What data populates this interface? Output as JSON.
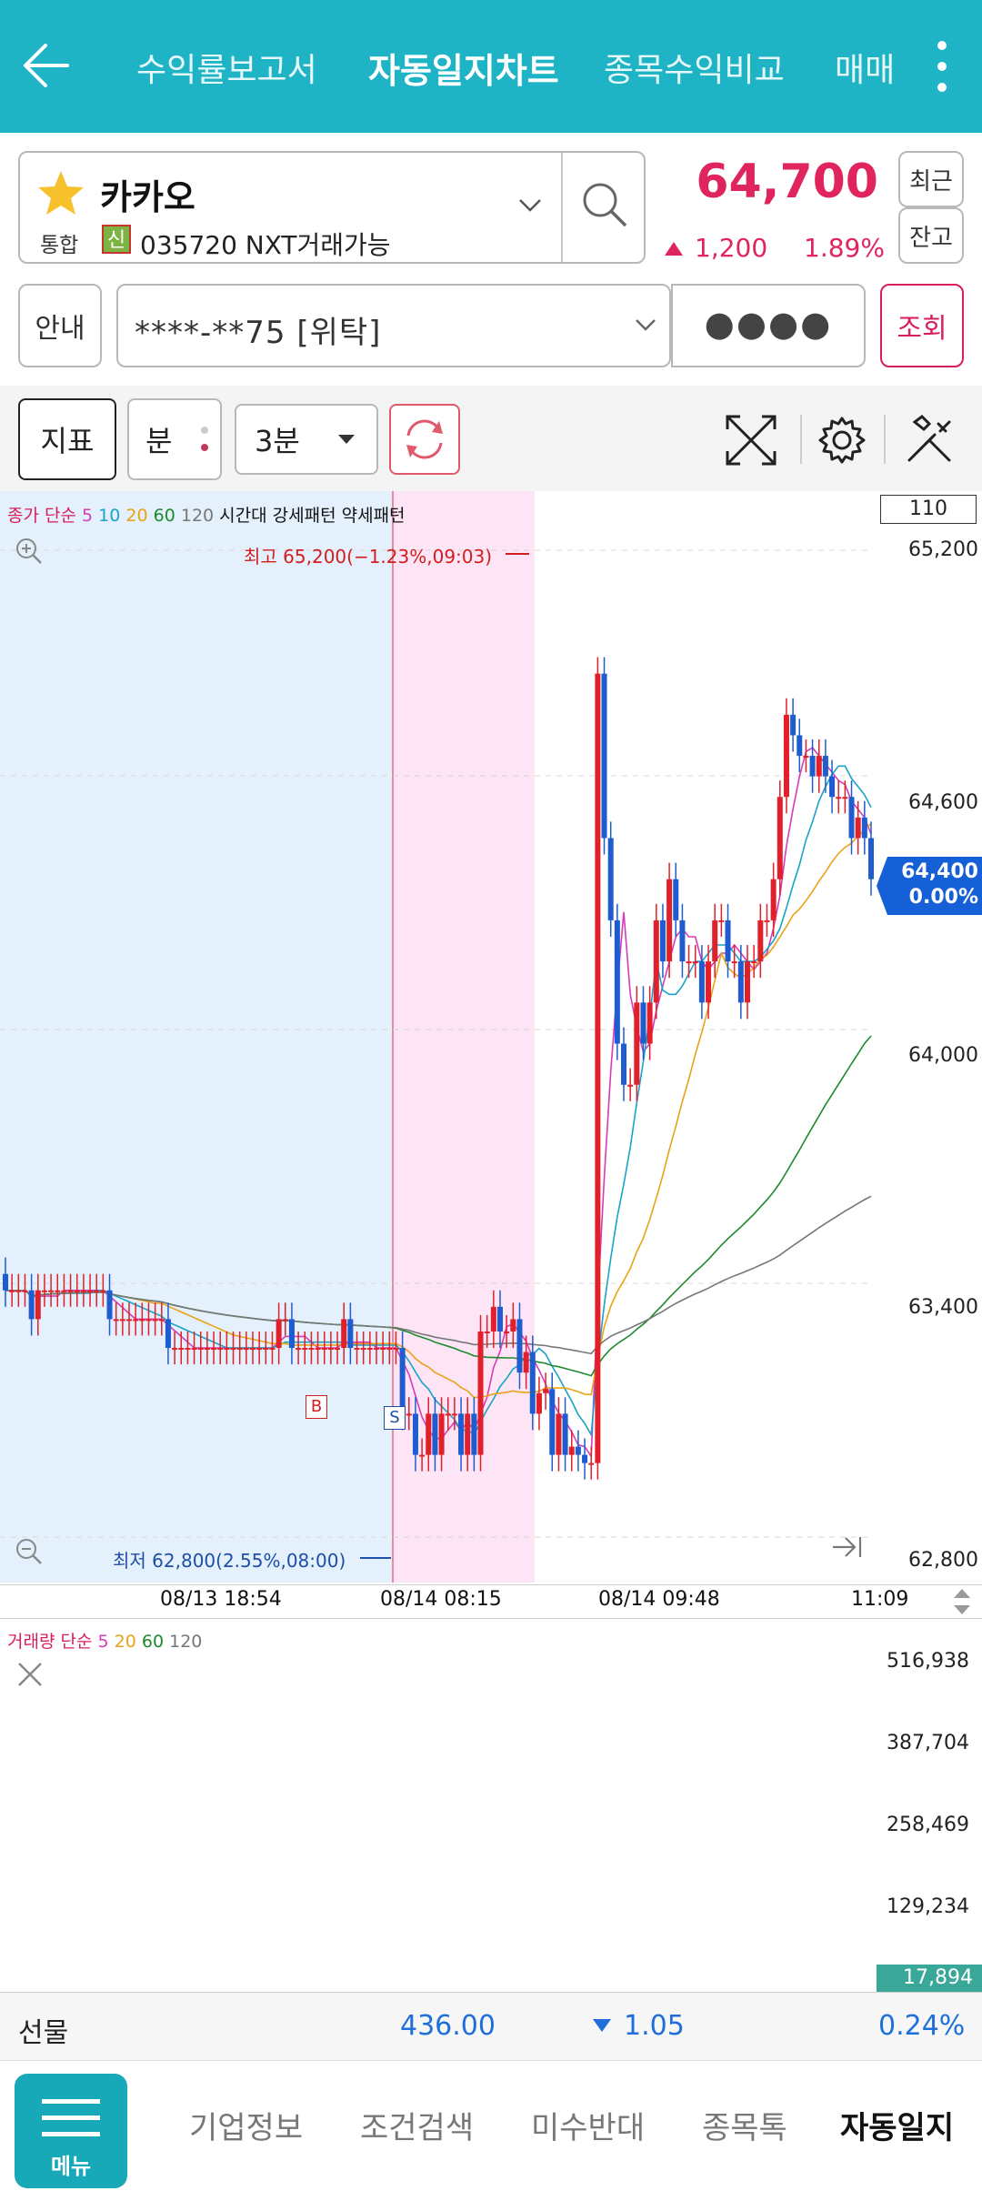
{
  "header": {
    "back_icon": "back-arrow-icon",
    "tabs": [
      {
        "label": "수익률보고서"
      },
      {
        "label": "자동일지차트"
      },
      {
        "label": "종목수익비교"
      },
      {
        "label": "매매"
      }
    ],
    "more_icon": "more-vertical-icon"
  },
  "stock": {
    "name": "카카오",
    "market": "통합",
    "badge": "신",
    "code_info": "035720 NXT거래가능",
    "price": "64,700",
    "change": "1,200",
    "change_pct": "1.89%",
    "recent_btn": "최근",
    "balance_btn": "잔고",
    "price_color": "#e0245e"
  },
  "account": {
    "guide_btn": "안내",
    "account_value": "****-**75 [위탁]",
    "password_mask": "●●●●",
    "query_btn": "조회"
  },
  "toolbar": {
    "indicator_btn": "지표",
    "unit_btn": "분",
    "interval_value": "3분"
  },
  "chart": {
    "legend": {
      "prefix": "종가 단순",
      "ma": [
        {
          "label": "5",
          "color": "#d63bb8"
        },
        {
          "label": "10",
          "color": "#18a3c9"
        },
        {
          "label": "20",
          "color": "#e8a317"
        },
        {
          "label": "60",
          "color": "#1e8a2e"
        },
        {
          "label": "120",
          "color": "#777777"
        }
      ],
      "suffix": "시간대 강세패턴 약세패턴"
    },
    "count_box": "110",
    "high_label": "최고 65,200(−1.23%,09:03)",
    "low_label": "최저 62,800(2.55%,08:00)",
    "current_price": "64,400",
    "current_pct": "0.00%",
    "marker_buy": "B",
    "marker_sell": "S",
    "price_axis": [
      "65,200",
      "64,600",
      "64,000",
      "63,400",
      "62,800"
    ],
    "time_axis": [
      "08/13 18:54",
      "08/14 08:15",
      "08/14 09:48",
      "11:09"
    ]
  },
  "volume": {
    "legend": {
      "prefix": "거래량 단순",
      "ma": [
        {
          "label": "5",
          "color": "#d63bb8"
        },
        {
          "label": "20",
          "color": "#e8a317"
        },
        {
          "label": "60",
          "color": "#1e8a2e"
        },
        {
          "label": "120",
          "color": "#777777"
        }
      ]
    },
    "axis": [
      "516,938",
      "387,704",
      "258,469",
      "129,234"
    ],
    "current": "17,894"
  },
  "futures": {
    "label": "선물",
    "value": "436.00",
    "change": "1.05",
    "change_pct": "0.24%"
  },
  "bottom_nav": {
    "menu_label": "메뉴",
    "items": [
      {
        "label": "기업정보"
      },
      {
        "label": "조건검색"
      },
      {
        "label": "미수반대"
      },
      {
        "label": "종목톡"
      },
      {
        "label": "자동일지"
      }
    ]
  },
  "colors": {
    "accent": "#1fb3c6",
    "up": "#e0202a",
    "down": "#1e5ccf",
    "pct": "#1e6fd9"
  }
}
